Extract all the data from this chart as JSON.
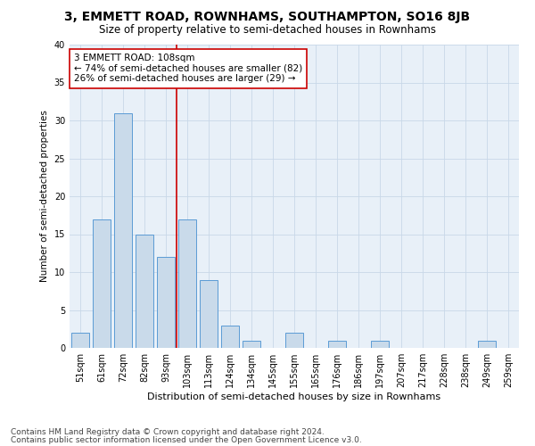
{
  "title": "3, EMMETT ROAD, ROWNHAMS, SOUTHAMPTON, SO16 8JB",
  "subtitle": "Size of property relative to semi-detached houses in Rownhams",
  "xlabel": "Distribution of semi-detached houses by size in Rownhams",
  "ylabel": "Number of semi-detached properties",
  "categories": [
    "51sqm",
    "61sqm",
    "72sqm",
    "82sqm",
    "93sqm",
    "103sqm",
    "113sqm",
    "124sqm",
    "134sqm",
    "145sqm",
    "155sqm",
    "165sqm",
    "176sqm",
    "186sqm",
    "197sqm",
    "207sqm",
    "217sqm",
    "228sqm",
    "238sqm",
    "249sqm",
    "259sqm"
  ],
  "values": [
    2,
    17,
    31,
    15,
    12,
    17,
    9,
    3,
    1,
    0,
    2,
    0,
    1,
    0,
    1,
    0,
    0,
    0,
    0,
    1,
    0
  ],
  "bar_color": "#c9daea",
  "bar_edge_color": "#5b9bd5",
  "grid_color": "#c8d8e8",
  "annotation_box_color": "#ffffff",
  "annotation_border_color": "#cc0000",
  "vline_color": "#cc0000",
  "vline_x_index": 5,
  "annotation_text_line1": "3 EMMETT ROAD: 108sqm",
  "annotation_text_line2": "← 74% of semi-detached houses are smaller (82)",
  "annotation_text_line3": "26% of semi-detached houses are larger (29) →",
  "footer_line1": "Contains HM Land Registry data © Crown copyright and database right 2024.",
  "footer_line2": "Contains public sector information licensed under the Open Government Licence v3.0.",
  "ylim": [
    0,
    40
  ],
  "yticks": [
    0,
    5,
    10,
    15,
    20,
    25,
    30,
    35,
    40
  ],
  "title_fontsize": 10,
  "subtitle_fontsize": 8.5,
  "annotation_fontsize": 7.5,
  "footer_fontsize": 6.5,
  "xlabel_fontsize": 8,
  "ylabel_fontsize": 7.5,
  "tick_fontsize": 7,
  "background_color": "#e8f0f8"
}
